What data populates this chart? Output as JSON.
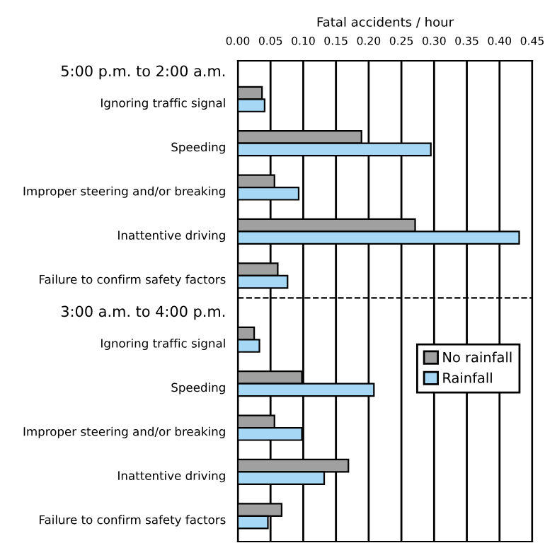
{
  "chart_data": {
    "type": "bar",
    "orientation": "horizontal",
    "xlabel": "Fatal accidents / hour",
    "categories": [
      "5:00 p.m. to 2:00 a.m.",
      "Ignoring traffic signal",
      "Speeding",
      "Improper steering and/or breaking",
      "Inattentive driving",
      "Failure to confirm safety factors",
      "3:00 a.m. to 4:00 p.m.",
      "Ignoring traffic signal",
      "Speeding",
      "Improper steering and/or breaking",
      "Inattentive driving",
      "Failure to confirm safety factors"
    ],
    "series": [
      {
        "name": "No rainfall",
        "color": "#a0a0a0",
        "values": [
          null,
          0.037,
          0.189,
          0.056,
          0.271,
          0.061,
          null,
          0.025,
          0.098,
          0.056,
          0.169,
          0.067
        ]
      },
      {
        "name": "Rainfall",
        "color": "#a6d8f5",
        "values": [
          null,
          0.041,
          0.295,
          0.093,
          0.43,
          0.076,
          null,
          0.033,
          0.208,
          0.098,
          0.132,
          0.046
        ]
      }
    ],
    "xlim": [
      0,
      0.45
    ],
    "xticks": [
      {
        "value": 0,
        "label": "0.00"
      },
      {
        "value": 0.05,
        "label": "0.05"
      },
      {
        "value": 0.1,
        "label": "0.10"
      },
      {
        "value": 0.15,
        "label": "0.15"
      },
      {
        "value": 0.2,
        "label": "0.20"
      },
      {
        "value": 0.25,
        "label": "0.25"
      },
      {
        "value": 0.3,
        "label": "0.30"
      },
      {
        "value": 0.35,
        "label": "0.35"
      },
      {
        "value": 0.4,
        "label": "0.40"
      },
      {
        "value": 0.45,
        "label": "0.45"
      }
    ],
    "ref_lines": [
      {
        "axis": "y",
        "value": "3:00 a.m. to 4:00 p.m.",
        "line_style": "dashed",
        "color": "#000000"
      }
    ],
    "grid": "x",
    "legend": "right"
  }
}
